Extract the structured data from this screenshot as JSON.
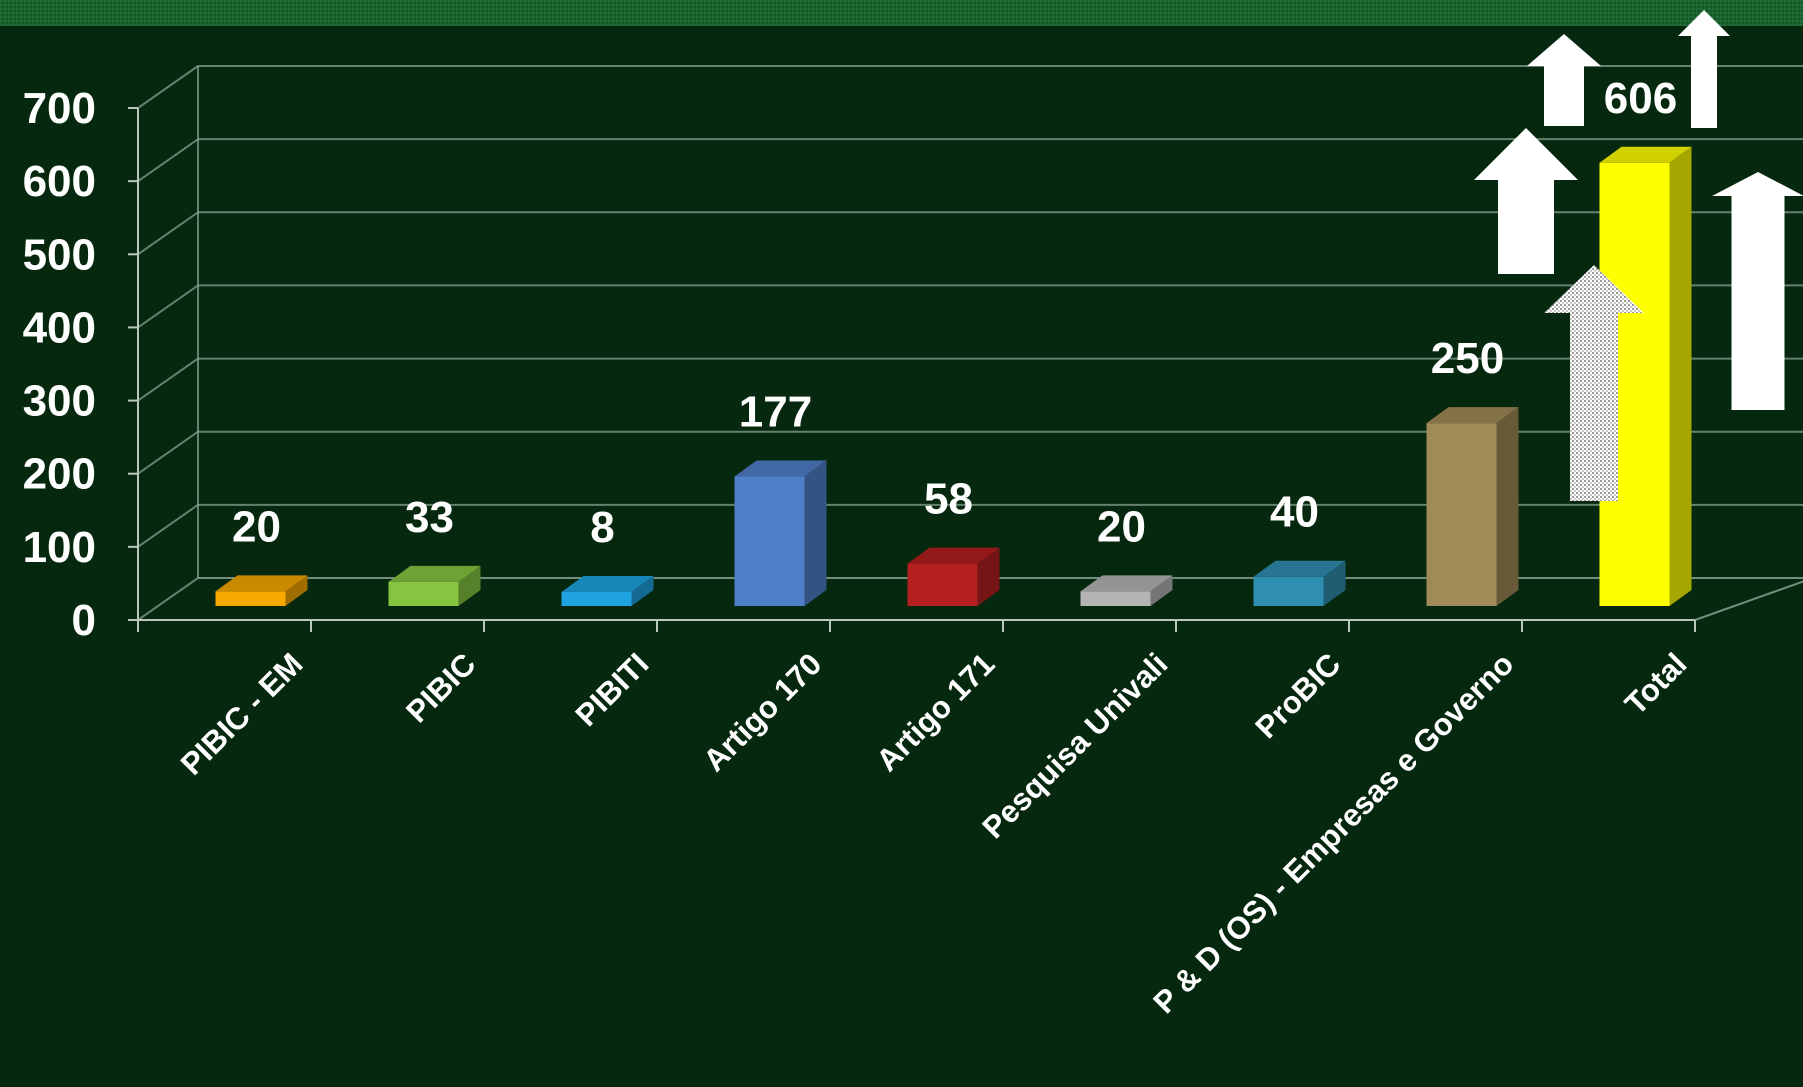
{
  "chart_data": {
    "type": "bar",
    "categories": [
      "PIBIC - EM",
      "PIBIC",
      "PIBITI",
      "Artigo 170",
      "Artigo 171",
      "Pesquisa Univali",
      "ProBIC",
      "P & D (OS) - Empresas e Governo",
      "Total"
    ],
    "values": [
      20,
      33,
      8,
      177,
      58,
      20,
      40,
      250,
      606
    ],
    "data_labels": [
      "20",
      "33",
      "8",
      "177",
      "58",
      "20",
      "40",
      "250",
      "606"
    ],
    "colors": [
      "#f5a800",
      "#86c540",
      "#1fa3e0",
      "#4f7fc8",
      "#b42020",
      "#b4b4b4",
      "#2f8fb0",
      "#a08a58",
      "#ffff00"
    ],
    "y_ticks": [
      "0",
      "100",
      "200",
      "300",
      "400",
      "500",
      "600",
      "700"
    ],
    "ylim": [
      0,
      700
    ],
    "grid": true,
    "style": "3d-column",
    "title": "",
    "xlabel": "",
    "ylabel": ""
  },
  "decorations": {
    "arrows": [
      {
        "name": "up-arrow-small-icon",
        "fill": "#ffffff"
      },
      {
        "name": "up-arrow-medium-icon",
        "fill": "#ffffff"
      },
      {
        "name": "up-arrow-dotted-icon",
        "fill": "dotted-white"
      },
      {
        "name": "up-arrow-thin-icon",
        "fill": "#ffffff"
      },
      {
        "name": "up-arrow-large-icon",
        "fill": "#ffffff"
      }
    ]
  }
}
